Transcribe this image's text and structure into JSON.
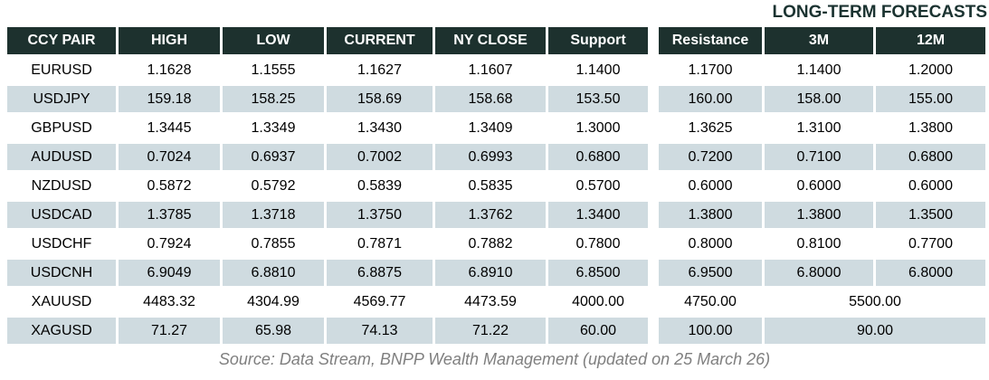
{
  "title": "LONG-TERM FORECASTS",
  "footer": "Source: Data Stream, BNPP Wealth Management (updated on 25 March 26)",
  "colors": {
    "header_bg": "#1d312e",
    "header_text": "#ffffff",
    "row_alt_bg": "#cfdbe0",
    "title_color": "#1b3331",
    "footer_color": "#7f7f7f",
    "data_text": "#000000"
  },
  "table": {
    "columns": [
      "CCY PAIR",
      "HIGH",
      "LOW",
      "CURRENT",
      "NY CLOSE",
      "Support",
      "Resistance",
      "3M",
      "12M"
    ],
    "rows": [
      {
        "cells": [
          "EURUSD",
          "1.1628",
          "1.1555",
          "1.1627",
          "1.1607",
          "1.1400",
          "1.1700",
          "1.1400",
          "1.2000"
        ]
      },
      {
        "cells": [
          "USDJPY",
          "159.18",
          "158.25",
          "158.69",
          "158.68",
          "153.50",
          "160.00",
          "158.00",
          "155.00"
        ]
      },
      {
        "cells": [
          "GBPUSD",
          "1.3445",
          "1.3349",
          "1.3430",
          "1.3409",
          "1.3000",
          "1.3625",
          "1.3100",
          "1.3800"
        ]
      },
      {
        "cells": [
          "AUDUSD",
          "0.7024",
          "0.6937",
          "0.7002",
          "0.6993",
          "0.6800",
          "0.7200",
          "0.7100",
          "0.6800"
        ]
      },
      {
        "cells": [
          "NZDUSD",
          "0.5872",
          "0.5792",
          "0.5839",
          "0.5835",
          "0.5700",
          "0.6000",
          "0.6000",
          "0.6000"
        ]
      },
      {
        "cells": [
          "USDCAD",
          "1.3785",
          "1.3718",
          "1.3750",
          "1.3762",
          "1.3400",
          "1.3800",
          "1.3800",
          "1.3500"
        ]
      },
      {
        "cells": [
          "USDCHF",
          "0.7924",
          "0.7855",
          "0.7871",
          "0.7882",
          "0.7800",
          "0.8000",
          "0.8100",
          "0.7700"
        ]
      },
      {
        "cells": [
          "USDCNH",
          "6.9049",
          "6.8810",
          "6.8875",
          "6.8910",
          "6.8500",
          "6.9500",
          "6.8000",
          "6.8000"
        ]
      },
      {
        "cells": [
          "XAUUSD",
          "4483.32",
          "4304.99",
          "4569.77",
          "4473.59",
          "4000.00",
          "4750.00",
          "5500.00"
        ],
        "merged_forecast": true
      },
      {
        "cells": [
          "XAGUSD",
          "71.27",
          "65.98",
          "74.13",
          "71.22",
          "60.00",
          "100.00",
          "90.00"
        ],
        "merged_forecast": true
      }
    ]
  },
  "chart_data": {
    "type": "table",
    "title": "LONG-TERM FORECASTS",
    "columns": [
      "CCY PAIR",
      "HIGH",
      "LOW",
      "CURRENT",
      "NY CLOSE",
      "Support",
      "Resistance",
      "3M",
      "12M"
    ],
    "rows": [
      {
        "pair": "EURUSD",
        "high": 1.1628,
        "low": 1.1555,
        "current": 1.1627,
        "ny_close": 1.1607,
        "support": 1.14,
        "resistance": 1.17,
        "forecast_3m": 1.14,
        "forecast_12m": 1.2
      },
      {
        "pair": "USDJPY",
        "high": 159.18,
        "low": 158.25,
        "current": 158.69,
        "ny_close": 158.68,
        "support": 153.5,
        "resistance": 160.0,
        "forecast_3m": 158.0,
        "forecast_12m": 155.0
      },
      {
        "pair": "GBPUSD",
        "high": 1.3445,
        "low": 1.3349,
        "current": 1.343,
        "ny_close": 1.3409,
        "support": 1.3,
        "resistance": 1.3625,
        "forecast_3m": 1.31,
        "forecast_12m": 1.38
      },
      {
        "pair": "AUDUSD",
        "high": 0.7024,
        "low": 0.6937,
        "current": 0.7002,
        "ny_close": 0.6993,
        "support": 0.68,
        "resistance": 0.72,
        "forecast_3m": 0.71,
        "forecast_12m": 0.68
      },
      {
        "pair": "NZDUSD",
        "high": 0.5872,
        "low": 0.5792,
        "current": 0.5839,
        "ny_close": 0.5835,
        "support": 0.57,
        "resistance": 0.6,
        "forecast_3m": 0.6,
        "forecast_12m": 0.6
      },
      {
        "pair": "USDCAD",
        "high": 1.3785,
        "low": 1.3718,
        "current": 1.375,
        "ny_close": 1.3762,
        "support": 1.34,
        "resistance": 1.38,
        "forecast_3m": 1.38,
        "forecast_12m": 1.35
      },
      {
        "pair": "USDCHF",
        "high": 0.7924,
        "low": 0.7855,
        "current": 0.7871,
        "ny_close": 0.7882,
        "support": 0.78,
        "resistance": 0.8,
        "forecast_3m": 0.81,
        "forecast_12m": 0.77
      },
      {
        "pair": "USDCNH",
        "high": 6.9049,
        "low": 6.881,
        "current": 6.8875,
        "ny_close": 6.891,
        "support": 6.85,
        "resistance": 6.95,
        "forecast_3m": 6.8,
        "forecast_12m": 6.8
      },
      {
        "pair": "XAUUSD",
        "high": 4483.32,
        "low": 4304.99,
        "current": 4569.77,
        "ny_close": 4473.59,
        "support": 4000.0,
        "resistance": 4750.0,
        "forecast_3m_12m_merged": 5500.0
      },
      {
        "pair": "XAGUSD",
        "high": 71.27,
        "low": 65.98,
        "current": 74.13,
        "ny_close": 71.22,
        "support": 60.0,
        "resistance": 100.0,
        "forecast_3m_12m_merged": 90.0
      }
    ],
    "source": "Source: Data Stream, BNPP Wealth Management (updated on 25 March 26)",
    "layout_notes": "Alternating white / light blue-gray rows; XAUUSD and XAGUSD show one forecast value merged across the 3M and 12M columns"
  }
}
